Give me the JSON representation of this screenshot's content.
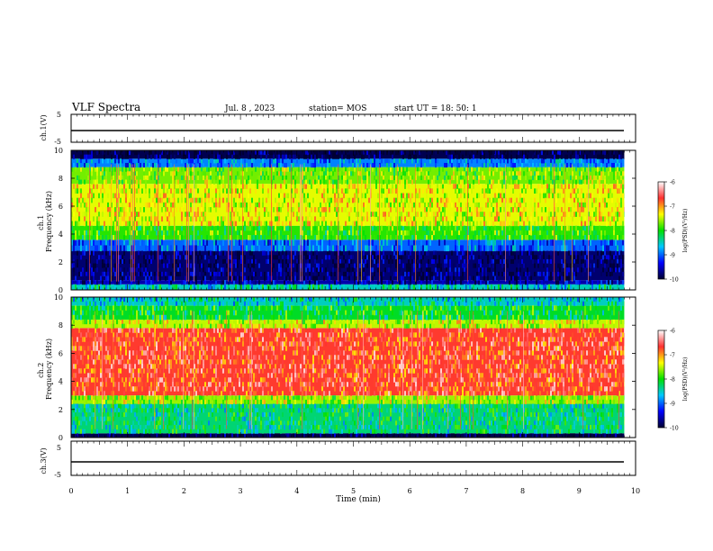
{
  "header": {
    "title": "VLF Spectra",
    "date": "Jul. 8 , 2023",
    "station": "station= MOS",
    "start": "start UT =  18: 50: 1"
  },
  "chart_data": [
    {
      "type": "line",
      "panel": "ch1-voltage",
      "ylabel": "ch.1(V)",
      "ylim": [
        -5,
        5
      ],
      "yticks": [
        "5",
        "-5"
      ],
      "x": [
        0,
        9.8
      ],
      "series": [
        {
          "values": [
            -1,
            -1
          ]
        }
      ]
    },
    {
      "type": "heatmap",
      "panel": "ch1-spectrogram",
      "ylabel": "ch.1\nFrequency (kHz)",
      "xlim": [
        0,
        10
      ],
      "ylim": [
        0,
        10
      ],
      "yticks": [
        "0",
        "2",
        "4",
        "6",
        "8",
        "10"
      ],
      "data_end_min": 9.8,
      "bands": [
        {
          "from": 0.0,
          "to": 0.4,
          "level": -8.5
        },
        {
          "from": 0.4,
          "to": 0.7,
          "level": -9.6
        },
        {
          "from": 0.7,
          "to": 2.8,
          "level": -9.8
        },
        {
          "from": 2.8,
          "to": 3.6,
          "level": -9.0
        },
        {
          "from": 3.6,
          "to": 4.6,
          "level": -7.9
        },
        {
          "from": 4.6,
          "to": 7.6,
          "level": -7.4
        },
        {
          "from": 7.6,
          "to": 8.8,
          "level": -7.7
        },
        {
          "from": 8.8,
          "to": 9.4,
          "level": -8.9
        },
        {
          "from": 9.4,
          "to": 10.0,
          "level": -9.9
        }
      ],
      "colorbar": {
        "label": "log(PSD)(V²/Hz)",
        "ticks": [
          "-6",
          "-7",
          "-8",
          "-9",
          "-10"
        ],
        "min": -10,
        "max": -6
      }
    },
    {
      "type": "heatmap",
      "panel": "ch2-spectrogram",
      "ylabel": "ch.2\nFrequency (kHz)",
      "xlim": [
        0,
        10
      ],
      "ylim": [
        0,
        10
      ],
      "yticks": [
        "0",
        "2",
        "4",
        "6",
        "8",
        "10"
      ],
      "data_end_min": 9.8,
      "bands": [
        {
          "from": 0.0,
          "to": 0.3,
          "level": -9.9
        },
        {
          "from": 0.3,
          "to": 2.4,
          "level": -8.3
        },
        {
          "from": 2.4,
          "to": 3.0,
          "level": -7.6
        },
        {
          "from": 3.0,
          "to": 7.8,
          "level": -6.7
        },
        {
          "from": 7.8,
          "to": 8.4,
          "level": -7.5
        },
        {
          "from": 8.4,
          "to": 9.4,
          "level": -8.1
        },
        {
          "from": 9.4,
          "to": 10.0,
          "level": -8.5
        }
      ],
      "colorbar": {
        "label": "log(PSD)(V²/Hz)",
        "ticks": [
          "-6",
          "-7",
          "-8",
          "-9",
          "-10"
        ],
        "min": -10,
        "max": -6
      }
    },
    {
      "type": "line",
      "panel": "ch3-voltage",
      "ylabel": "ch.3(V)",
      "ylim": [
        -5,
        5
      ],
      "yticks": [
        "5",
        "-5"
      ],
      "x": [
        0,
        9.8
      ],
      "series": [
        {
          "values": [
            -1,
            -1
          ]
        }
      ]
    }
  ],
  "xaxis": {
    "label": "Time (min)",
    "ticks": [
      "0",
      "1",
      "2",
      "3",
      "4",
      "5",
      "6",
      "7",
      "8",
      "9",
      "10"
    ],
    "xlim": [
      0,
      10
    ]
  },
  "colors": {
    "scale": [
      "#ffffff",
      "#ff3030",
      "#ffff00",
      "#00e000",
      "#00c8ff",
      "#0000ff",
      "#000030"
    ],
    "frame": "#000000"
  }
}
